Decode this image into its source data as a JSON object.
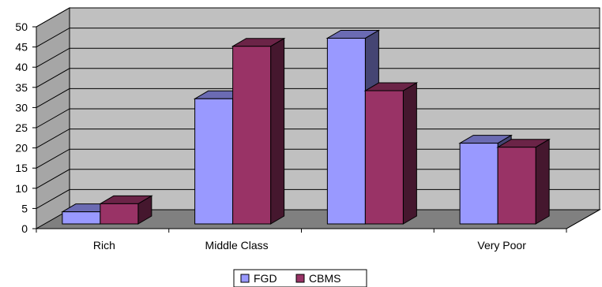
{
  "chart_data": {
    "type": "bar",
    "view": "3d-clustered-column",
    "categories": [
      "Rich",
      "Middle Class",
      "",
      "Very Poor"
    ],
    "series": [
      {
        "name": "FGD",
        "values": [
          3,
          31,
          46,
          20
        ],
        "color": "#9999FF"
      },
      {
        "name": "CBMS",
        "values": [
          5,
          44,
          33,
          19
        ],
        "color": "#993366"
      }
    ],
    "ylim": [
      0,
      50
    ],
    "yticks": [
      0,
      5,
      10,
      15,
      20,
      25,
      30,
      35,
      40,
      45,
      50
    ],
    "grid": true,
    "legend_position": "bottom",
    "floor_color": "#808080",
    "wall_color": "#C0C0C0"
  }
}
